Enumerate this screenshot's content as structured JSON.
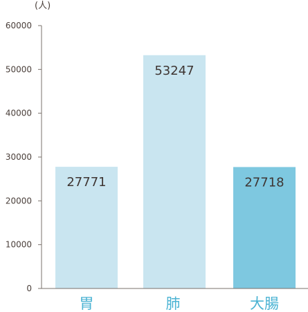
{
  "chart_data": {
    "type": "bar",
    "unit_label": "(人)",
    "categories": [
      "胃",
      "肺",
      "大腸"
    ],
    "values": [
      27771,
      53247,
      27718
    ],
    "data_labels": [
      "27771",
      "53247",
      "27718"
    ],
    "ylim": [
      0,
      60000
    ],
    "yticks": [
      0,
      10000,
      20000,
      30000,
      40000,
      50000,
      60000
    ],
    "ytick_labels": [
      "0",
      "10000",
      "20000",
      "30000",
      "40000",
      "50000",
      "60000"
    ],
    "bar_colors": [
      "#c9e5f0",
      "#c9e5f0",
      "#7ec8e0"
    ],
    "label_color": "#4bb3d3",
    "text_color": "#4a3f3a",
    "axis_color": "#7a706b",
    "grid": false,
    "legend": "none"
  }
}
